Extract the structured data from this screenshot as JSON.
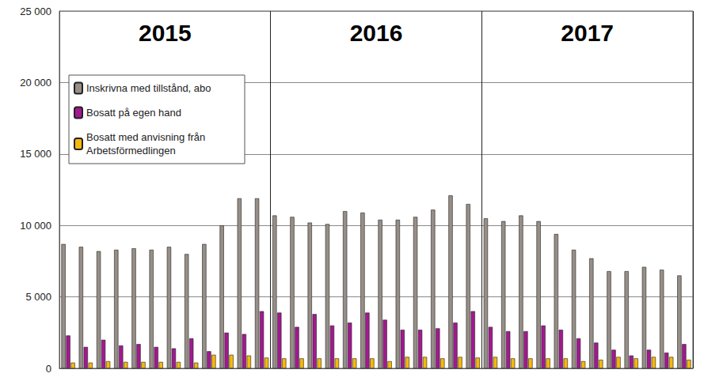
{
  "chart_data": {
    "type": "bar",
    "annotations": [
      "2015",
      "2016",
      "2017"
    ],
    "categories": [
      null,
      null,
      null,
      null,
      null,
      null,
      null,
      null,
      null,
      null,
      null,
      null,
      null,
      null,
      null,
      null,
      null,
      null,
      null,
      null,
      null,
      null,
      null,
      null,
      null,
      null,
      null,
      null,
      null,
      null,
      null,
      null,
      null,
      null,
      null,
      null
    ],
    "series": [
      {
        "name": "Inskrivna med tillstånd, abo",
        "color": "#978f87",
        "values": [
          8700,
          8500,
          8200,
          8300,
          8400,
          8300,
          8500,
          8000,
          8700,
          10000,
          11900,
          11900,
          10700,
          10600,
          10200,
          10100,
          11000,
          10900,
          10400,
          10400,
          10600,
          11100,
          12100,
          11500,
          10500,
          10300,
          10700,
          10300,
          9400,
          8300,
          7700,
          6800,
          6800,
          7100,
          6900,
          6500
        ]
      },
      {
        "name": "Bosatt på egen hand",
        "color": "#a2198f",
        "values": [
          2300,
          1500,
          2000,
          1600,
          1700,
          1500,
          1400,
          2100,
          1200,
          2500,
          2400,
          4000,
          3900,
          2900,
          3800,
          3000,
          3200,
          3900,
          3400,
          2700,
          2700,
          2800,
          3200,
          4000,
          2900,
          2600,
          2600,
          3000,
          2700,
          2100,
          1800,
          1300,
          900,
          1300,
          1100,
          1700
        ]
      },
      {
        "name": "Bosatt med anvisning från Arbetsförmedlingen",
        "color": "#f6b80c",
        "values": [
          400,
          400,
          500,
          450,
          450,
          450,
          450,
          400,
          950,
          950,
          900,
          750,
          700,
          700,
          700,
          700,
          700,
          700,
          500,
          800,
          800,
          700,
          800,
          750,
          800,
          700,
          700,
          700,
          700,
          500,
          600,
          800,
          700,
          800,
          800,
          600
        ]
      }
    ],
    "ylim": [
      0,
      25000
    ],
    "yticks": [
      0,
      {
        "value": 5000,
        "label": "5 000"
      },
      {
        "value": 10000,
        "label": "10 000"
      },
      {
        "value": 15000,
        "label": "15 000"
      },
      {
        "value": 20000,
        "label": "20 000"
      },
      {
        "value": 25000,
        "label": "25 000"
      }
    ],
    "grid": true,
    "legend": "upper-left",
    "tick_labels": "y",
    "data_labels": false
  }
}
